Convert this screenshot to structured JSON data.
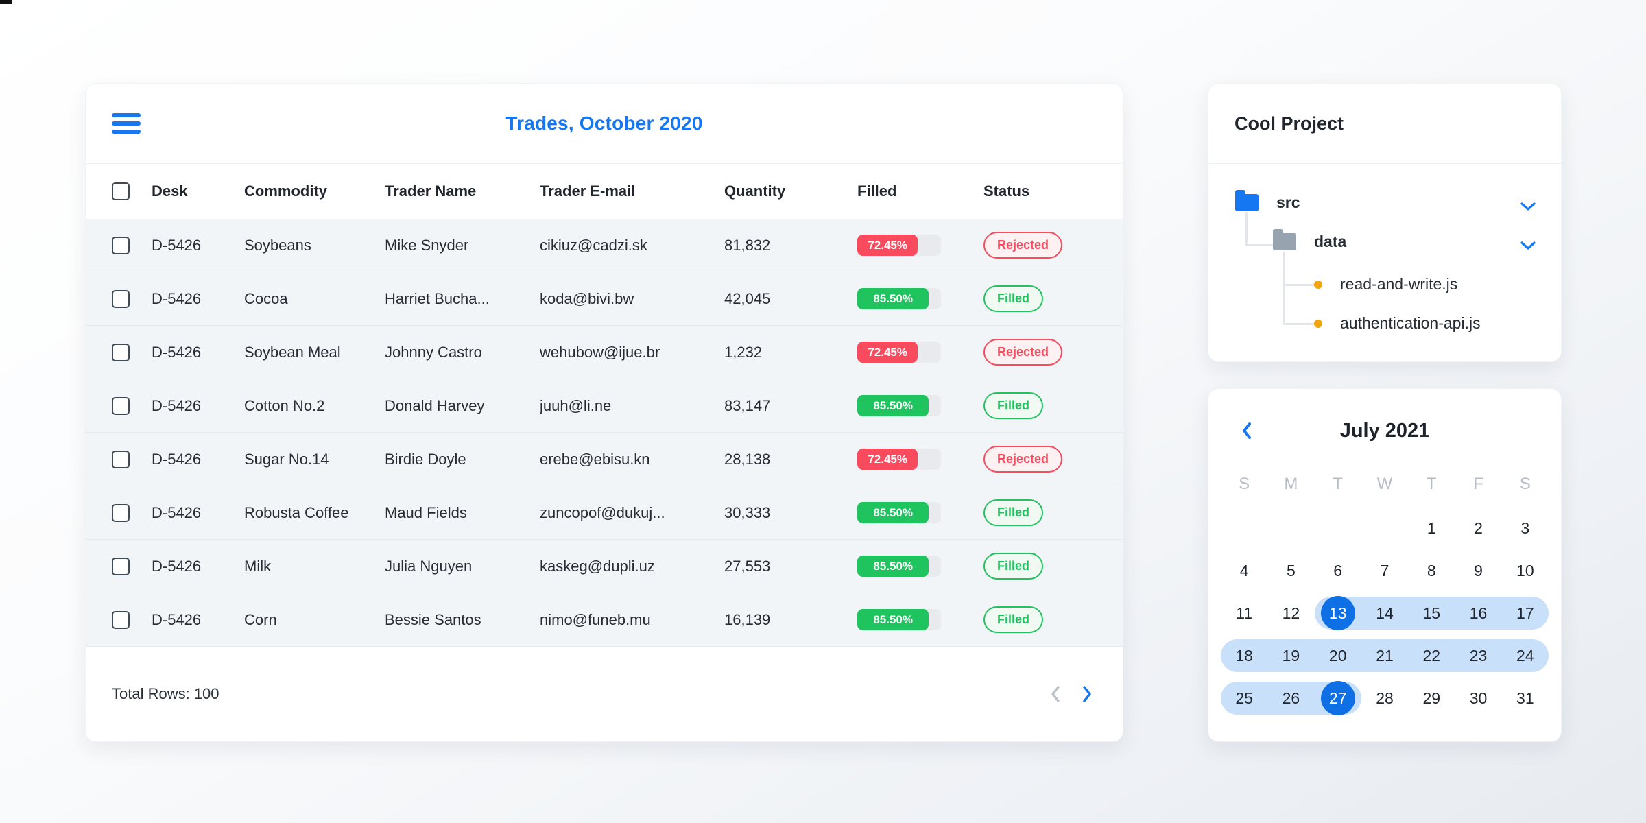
{
  "colors": {
    "accent_blue": "#1578f2",
    "red": "#fa4a5e",
    "green": "#1fc45f",
    "range_blue": "#c9e0fb",
    "selected_blue": "#0f70e6",
    "orange": "#f0a50e",
    "row_bg": "#f2f5f8"
  },
  "table_card": {
    "title": "Trades, October 2020",
    "columns": [
      "Desk",
      "Commodity",
      "Trader Name",
      "Trader E-mail",
      "Quantity",
      "Filled",
      "Status"
    ],
    "rows": [
      {
        "desk": "D-5426",
        "commodity": "Soybeans",
        "trader": "Mike Snyder",
        "email": "cikiuz@cadzi.sk",
        "quantity": "81,832",
        "filled_label": "72.45%",
        "filled_pct": 72.45,
        "status": "Rejected"
      },
      {
        "desk": "D-5426",
        "commodity": "Cocoa",
        "trader": "Harriet Bucha...",
        "email": "koda@bivi.bw",
        "quantity": "42,045",
        "filled_label": "85.50%",
        "filled_pct": 85.5,
        "status": "Filled"
      },
      {
        "desk": "D-5426",
        "commodity": "Soybean Meal",
        "trader": "Johnny Castro",
        "email": "wehubow@ijue.br",
        "quantity": "1,232",
        "filled_label": "72.45%",
        "filled_pct": 72.45,
        "status": "Rejected"
      },
      {
        "desk": "D-5426",
        "commodity": "Cotton No.2",
        "trader": "Donald Harvey",
        "email": "juuh@li.ne",
        "quantity": "83,147",
        "filled_label": "85.50%",
        "filled_pct": 85.5,
        "status": "Filled"
      },
      {
        "desk": "D-5426",
        "commodity": "Sugar No.14",
        "trader": "Birdie Doyle",
        "email": "erebe@ebisu.kn",
        "quantity": "28,138",
        "filled_label": "72.45%",
        "filled_pct": 72.45,
        "status": "Rejected"
      },
      {
        "desk": "D-5426",
        "commodity": "Robusta Coffee",
        "trader": "Maud Fields",
        "email": "zuncopof@dukuj...",
        "quantity": "30,333",
        "filled_label": "85.50%",
        "filled_pct": 85.5,
        "status": "Filled"
      },
      {
        "desk": "D-5426",
        "commodity": "Milk",
        "trader": "Julia Nguyen",
        "email": "kaskeg@dupli.uz",
        "quantity": "27,553",
        "filled_label": "85.50%",
        "filled_pct": 85.5,
        "status": "Filled"
      },
      {
        "desk": "D-5426",
        "commodity": "Corn",
        "trader": "Bessie Santos",
        "email": "nimo@funeb.mu",
        "quantity": "16,139",
        "filled_label": "85.50%",
        "filled_pct": 85.5,
        "status": "Filled"
      }
    ],
    "footer": {
      "total_label": "Total Rows: 100"
    }
  },
  "file_card": {
    "title": "Cool Project",
    "tree": {
      "folder1": "src",
      "folder2": "data",
      "file1": "read-and-write.js",
      "file2": "authentication-api.js"
    }
  },
  "calendar_card": {
    "title": "July 2021",
    "day_headers": [
      "S",
      "M",
      "T",
      "W",
      "T",
      "F",
      "S"
    ],
    "weeks": [
      [
        null,
        null,
        null,
        null,
        1,
        2,
        3
      ],
      [
        4,
        5,
        6,
        7,
        8,
        9,
        10
      ],
      [
        11,
        12,
        13,
        14,
        15,
        16,
        17
      ],
      [
        18,
        19,
        20,
        21,
        22,
        23,
        24
      ],
      [
        25,
        26,
        27,
        28,
        29,
        30,
        31
      ]
    ],
    "range_start": 13,
    "range_end": 27,
    "selected_days": [
      13,
      27
    ]
  }
}
